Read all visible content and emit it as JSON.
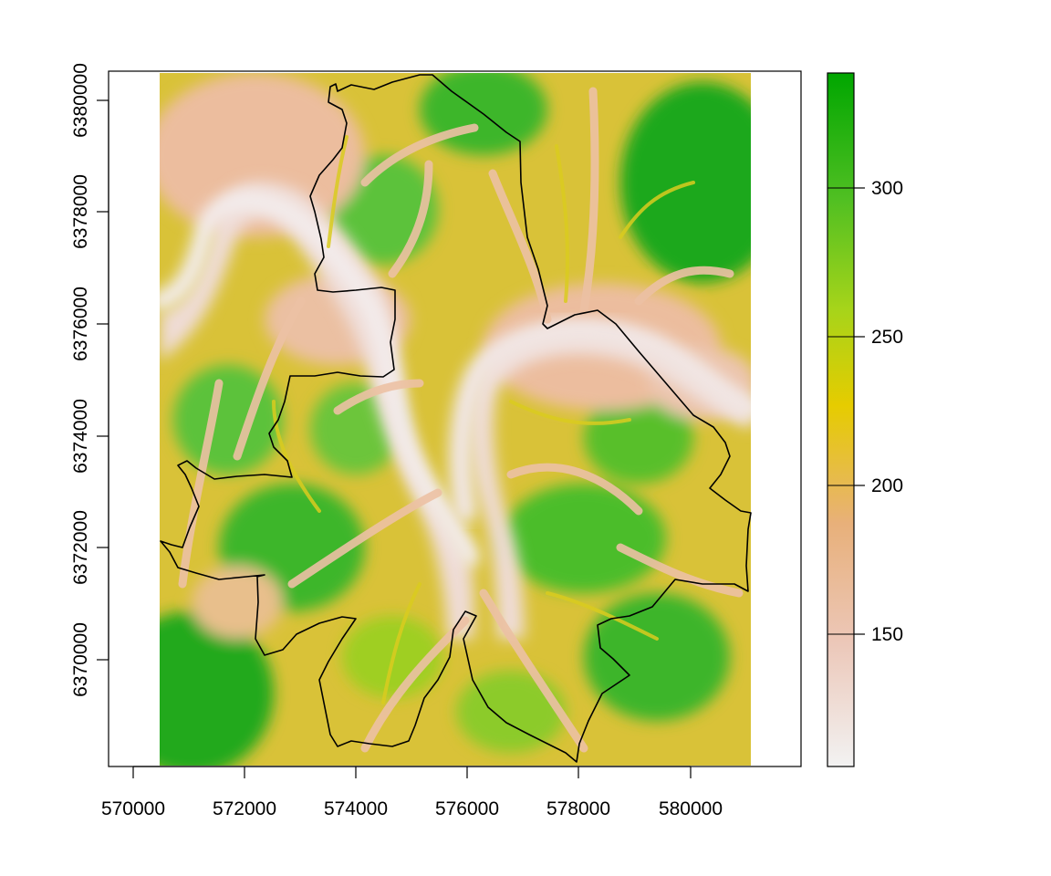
{
  "map": {
    "x_ticks": [
      "570000",
      "572000",
      "574000",
      "576000",
      "578000",
      "580000"
    ],
    "y_ticks": [
      "6370000",
      "6372000",
      "6374000",
      "6376000",
      "6378000",
      "6380000"
    ]
  },
  "legend": {
    "ticks": [
      "150",
      "200",
      "250",
      "300"
    ],
    "colors": {
      "low": "#f2f2f2",
      "mid_low": "#ebb595",
      "mid": "#e6cc00",
      "high": "#00a600"
    }
  },
  "colors": {
    "valley": "#f0dcd8",
    "plain": "#ecbd9e",
    "slope": "#d8cc2a",
    "ridge": "#5cc23a",
    "peak": "#1ea81a",
    "boundary": "#000000"
  }
}
